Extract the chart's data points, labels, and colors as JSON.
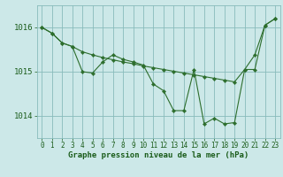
{
  "background_color": "#cce8e8",
  "plot_bg_color": "#cce8e8",
  "grid_color": "#88bbbb",
  "line_color": "#2d6e2d",
  "marker_color": "#2d6e2d",
  "xlabel": "Graphe pression niveau de la mer (hPa)",
  "xlim": [
    -0.5,
    23.5
  ],
  "ylim": [
    1013.5,
    1016.5
  ],
  "yticks": [
    1014,
    1015,
    1016
  ],
  "xticks": [
    0,
    1,
    2,
    3,
    4,
    5,
    6,
    7,
    8,
    9,
    10,
    11,
    12,
    13,
    14,
    15,
    16,
    17,
    18,
    19,
    20,
    21,
    22,
    23
  ],
  "line1_x": [
    0,
    1,
    2,
    3,
    4,
    5,
    6,
    7,
    8,
    9,
    10,
    11,
    12,
    13,
    14,
    15,
    16,
    17,
    18,
    19,
    20,
    21,
    22,
    23
  ],
  "line1_y": [
    1016.0,
    1015.87,
    1015.65,
    1015.57,
    1015.45,
    1015.38,
    1015.32,
    1015.27,
    1015.22,
    1015.18,
    1015.13,
    1015.09,
    1015.05,
    1015.01,
    1014.97,
    1014.93,
    1014.89,
    1014.85,
    1014.81,
    1014.77,
    1015.05,
    1015.38,
    1016.05,
    1016.2
  ],
  "line2_x": [
    0,
    1,
    2,
    3,
    4,
    5,
    6,
    7,
    8,
    9,
    10,
    11,
    12,
    13,
    14,
    15,
    16,
    17,
    18,
    19,
    20,
    21,
    22,
    23
  ],
  "line2_y": [
    1016.0,
    1015.87,
    1015.65,
    1015.57,
    1015.0,
    1014.97,
    1015.22,
    1015.38,
    1015.28,
    1015.22,
    1015.15,
    1014.72,
    1014.57,
    1014.12,
    1014.12,
    1015.05,
    1013.82,
    1013.95,
    1013.82,
    1013.85,
    1015.05,
    1015.05,
    1016.05,
    1016.2
  ],
  "xlabel_fontsize": 6.5,
  "tick_fontsize": 5.5,
  "tick_color": "#1a5c1a",
  "xlabel_color": "#1a5c1a",
  "figsize": [
    3.2,
    2.0
  ],
  "dpi": 100
}
